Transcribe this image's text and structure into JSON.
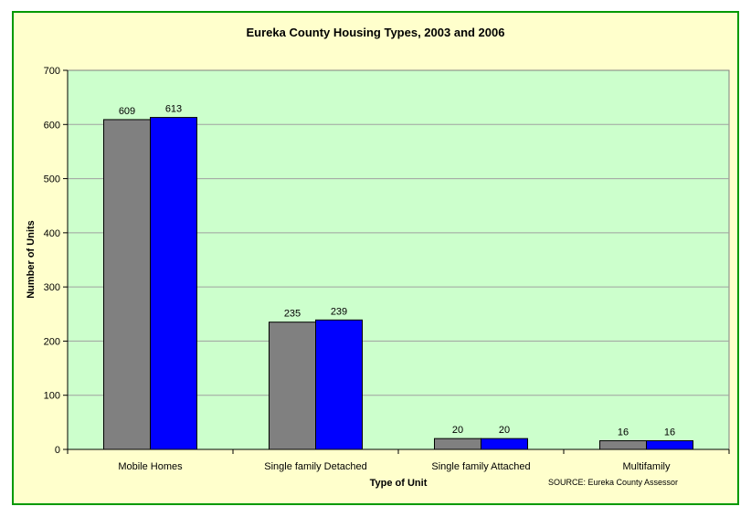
{
  "chart_data": {
    "type": "bar",
    "title": "Eureka County Housing Types, 2003 and 2006",
    "xlabel": "Type of Unit",
    "ylabel": "Number of Units",
    "ylim": [
      0,
      700
    ],
    "yticks": [
      "0",
      "100",
      "200",
      "300",
      "400",
      "500",
      "600",
      "700"
    ],
    "categories": [
      "Mobile Homes",
      "Single family Detached",
      "Single family Attached",
      "Multifamily"
    ],
    "series": [
      {
        "values": [
          609,
          235,
          20,
          16
        ],
        "color": "#808080"
      },
      {
        "values": [
          613,
          239,
          20,
          16
        ],
        "color": "#0000ff"
      }
    ],
    "grid": true,
    "plot_background": "#ccffcc",
    "frame_background": "#ffffcc",
    "frame_border": "#009900",
    "source": "SOURCE: Eureka County Assessor"
  }
}
